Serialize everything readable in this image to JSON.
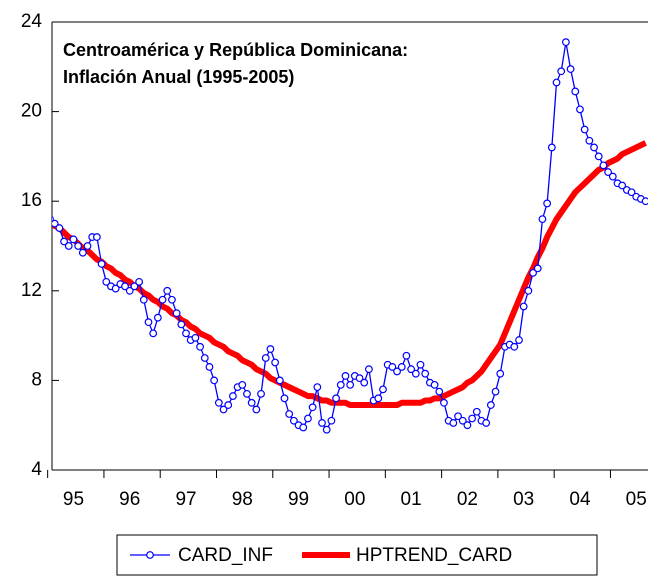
{
  "chart_data": {
    "type": "line",
    "title": "Centroamérica y República Dominicana:",
    "subtitle": "Inflación Anual (1995-2005)",
    "categories": [
      null,
      null,
      null,
      null,
      null,
      "95",
      null,
      null,
      null,
      null,
      null,
      null,
      null,
      null,
      null,
      null,
      null,
      "96",
      null,
      null,
      null,
      null,
      null,
      null,
      null,
      null,
      null,
      null,
      null,
      "97",
      null,
      null,
      null,
      null,
      null,
      null,
      null,
      null,
      null,
      null,
      null,
      "98",
      null,
      null,
      null,
      null,
      null,
      null,
      null,
      null,
      null,
      null,
      null,
      "99",
      null,
      null,
      null,
      null,
      null,
      null,
      null,
      null,
      null,
      null,
      null,
      "00",
      null,
      null,
      null,
      null,
      null,
      null,
      null,
      null,
      null,
      null,
      null,
      "01",
      null,
      null,
      null,
      null,
      null,
      null,
      null,
      null,
      null,
      null,
      null,
      "02",
      null,
      null,
      null,
      null,
      null,
      null,
      null,
      null,
      null,
      null,
      null,
      "03",
      null,
      null,
      null,
      null,
      null,
      null,
      null,
      null,
      null,
      null,
      null,
      "04",
      null,
      null,
      null,
      null,
      null,
      null,
      null,
      null,
      null,
      null,
      null,
      "05",
      null,
      null
    ],
    "series": [
      {
        "name": "CARD_INF",
        "color": "#0000ff",
        "marker": "circle",
        "values": [
          15.2,
          15.0,
          14.8,
          14.2,
          14.0,
          14.3,
          14.0,
          13.7,
          14.0,
          14.4,
          14.4,
          13.2,
          12.4,
          12.2,
          12.1,
          12.3,
          12.2,
          12.0,
          12.2,
          12.4,
          11.6,
          10.6,
          10.1,
          10.8,
          11.6,
          12.0,
          11.6,
          11.0,
          10.5,
          10.1,
          9.8,
          9.9,
          9.5,
          9.0,
          8.6,
          8.0,
          7.0,
          6.7,
          6.9,
          7.3,
          7.7,
          7.8,
          7.4,
          7.0,
          6.7,
          7.4,
          9.0,
          9.4,
          8.8,
          8.0,
          7.2,
          6.5,
          6.2,
          6.0,
          5.9,
          6.3,
          6.8,
          7.7,
          6.1,
          5.8,
          6.2,
          7.2,
          7.8,
          8.2,
          7.8,
          8.2,
          8.1,
          7.9,
          8.5,
          7.1,
          7.2,
          7.6,
          8.7,
          8.6,
          8.4,
          8.6,
          9.1,
          8.5,
          8.3,
          8.7,
          8.3,
          7.9,
          7.8,
          7.5,
          7.0,
          6.2,
          6.1,
          6.4,
          6.2,
          6.0,
          6.3,
          6.6,
          6.2,
          6.1,
          6.9,
          7.5,
          8.3,
          9.5,
          9.6,
          9.5,
          9.8,
          11.3,
          12.0,
          12.8,
          13.0,
          15.2,
          15.9,
          18.4,
          21.3,
          21.8,
          23.1,
          21.9,
          20.9,
          20.1,
          19.2,
          18.7,
          18.4,
          18.0,
          17.6,
          17.3,
          17.1,
          16.8,
          16.7,
          16.5,
          16.4,
          16.2,
          16.1,
          16.0
        ]
      },
      {
        "name": "HPTREND_CARD",
        "color": "#ff0000",
        "values": [
          15.1,
          14.9,
          14.8,
          14.6,
          14.4,
          14.3,
          14.1,
          13.9,
          13.8,
          13.6,
          13.4,
          13.3,
          13.1,
          13.0,
          12.8,
          12.7,
          12.5,
          12.4,
          12.2,
          12.1,
          11.9,
          11.8,
          11.6,
          11.5,
          11.3,
          11.2,
          11.0,
          10.9,
          10.7,
          10.6,
          10.4,
          10.3,
          10.1,
          10.0,
          9.9,
          9.7,
          9.6,
          9.5,
          9.3,
          9.2,
          9.1,
          8.9,
          8.8,
          8.7,
          8.5,
          8.4,
          8.3,
          8.1,
          8.0,
          7.9,
          7.8,
          7.7,
          7.6,
          7.5,
          7.4,
          7.3,
          7.3,
          7.2,
          7.1,
          7.1,
          7.0,
          7.0,
          7.0,
          7.0,
          6.9,
          6.9,
          6.9,
          6.9,
          6.9,
          6.9,
          6.9,
          6.9,
          6.9,
          6.9,
          6.9,
          7.0,
          7.0,
          7.0,
          7.0,
          7.0,
          7.1,
          7.1,
          7.2,
          7.2,
          7.3,
          7.4,
          7.5,
          7.6,
          7.7,
          7.9,
          8.0,
          8.2,
          8.4,
          8.7,
          9.0,
          9.3,
          9.6,
          10.1,
          10.6,
          11.1,
          11.6,
          12.1,
          12.6,
          13.0,
          13.5,
          13.9,
          14.4,
          14.8,
          15.2,
          15.5,
          15.8,
          16.1,
          16.4,
          16.6,
          16.8,
          17.0,
          17.2,
          17.4,
          17.5,
          17.7,
          17.8,
          17.9,
          18.1,
          18.2,
          18.3,
          18.4,
          18.5,
          18.6
        ]
      }
    ],
    "ylim": [
      4,
      24
    ],
    "yticks": [
      4,
      8,
      12,
      16,
      20,
      24
    ],
    "legend": "bottom"
  }
}
